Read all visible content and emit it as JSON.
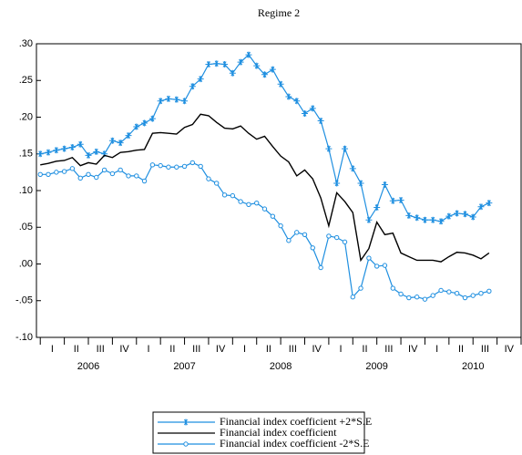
{
  "chart_data": {
    "type": "line",
    "title": "Regime 2",
    "x": [
      2006,
      2006.083,
      2006.167,
      2006.25,
      2006.333,
      2006.417,
      2006.5,
      2006.583,
      2006.667,
      2006.75,
      2006.833,
      2006.917,
      2007,
      2007.083,
      2007.167,
      2007.25,
      2007.333,
      2007.417,
      2007.5,
      2007.583,
      2007.667,
      2007.75,
      2007.833,
      2007.917,
      2008,
      2008.083,
      2008.167,
      2008.25,
      2008.333,
      2008.417,
      2008.5,
      2008.583,
      2008.667,
      2008.75,
      2008.833,
      2008.917,
      2009,
      2009.083,
      2009.167,
      2009.25,
      2009.333,
      2009.417,
      2009.5,
      2009.583,
      2009.667,
      2009.75,
      2009.833,
      2009.917,
      2010,
      2010.083,
      2010.167,
      2010.25,
      2010.333,
      2010.417,
      2010.5,
      2010.583,
      2010.667
    ],
    "series": [
      {
        "name": "Financial index coefficient +2*S.E",
        "color": "#1f8fe0",
        "marker": "star",
        "values": [
          0.15,
          0.152,
          0.155,
          0.157,
          0.159,
          0.163,
          0.148,
          0.153,
          0.15,
          0.168,
          0.165,
          0.175,
          0.187,
          0.192,
          0.198,
          0.222,
          0.225,
          0.224,
          0.222,
          0.242,
          0.252,
          0.272,
          0.273,
          0.272,
          0.26,
          0.275,
          0.285,
          0.27,
          0.258,
          0.265,
          0.245,
          0.228,
          0.222,
          0.205,
          0.212,
          0.195,
          0.157,
          0.11,
          0.157,
          0.13,
          0.11,
          0.06,
          0.077,
          0.108,
          0.086,
          0.087,
          0.066,
          0.063,
          0.06,
          0.06,
          0.058,
          0.065,
          0.069,
          0.068,
          0.064,
          0.078,
          0.083
        ]
      },
      {
        "name": "Financial index  coefficient",
        "color": "#000000",
        "marker": "none",
        "values": [
          0.135,
          0.137,
          0.14,
          0.141,
          0.145,
          0.134,
          0.138,
          0.136,
          0.148,
          0.145,
          0.152,
          0.153,
          0.155,
          0.156,
          0.178,
          0.179,
          0.178,
          0.177,
          0.186,
          0.19,
          0.204,
          0.202,
          0.193,
          0.185,
          0.184,
          0.188,
          0.178,
          0.17,
          0.174,
          0.16,
          0.147,
          0.139,
          0.12,
          0.128,
          0.116,
          0.09,
          0.052,
          0.097,
          0.085,
          0.07,
          0.005,
          0.021,
          0.057,
          0.04,
          0.042,
          0.015,
          0.01,
          0.005,
          0.005,
          0.005,
          0.003,
          0.01,
          0.016,
          0.015,
          0.012,
          0.007,
          0.015
        ]
      },
      {
        "name": "Financial index coefficient -2*S.E",
        "color": "#1f8fe0",
        "marker": "circle",
        "values": [
          0.122,
          0.122,
          0.125,
          0.126,
          0.13,
          0.117,
          0.122,
          0.118,
          0.128,
          0.123,
          0.128,
          0.12,
          0.12,
          0.113,
          0.135,
          0.134,
          0.132,
          0.132,
          0.133,
          0.138,
          0.133,
          0.116,
          0.11,
          0.094,
          0.093,
          0.085,
          0.081,
          0.083,
          0.075,
          0.065,
          0.052,
          0.032,
          0.043,
          0.04,
          0.022,
          -0.005,
          0.038,
          0.036,
          0.03,
          -0.045,
          -0.033,
          0.008,
          -0.003,
          -0.002,
          -0.033,
          -0.041,
          -0.046,
          -0.045,
          -0.048,
          -0.043,
          -0.036,
          -0.038,
          -0.04,
          -0.046,
          -0.043,
          -0.04,
          -0.037
        ]
      }
    ],
    "ylim": [
      -0.1,
      0.3
    ],
    "yticks": [
      {
        "value": -0.1,
        "label": "-.10"
      },
      {
        "value": -0.05,
        "label": "-.05"
      },
      {
        "value": 0,
        "label": ".00"
      },
      {
        "value": 0.05,
        "label": ".05"
      },
      {
        "value": 0.1,
        "label": ".10"
      },
      {
        "value": 0.15,
        "label": ".15"
      },
      {
        "value": 0.2,
        "label": ".20"
      },
      {
        "value": 0.25,
        "label": ".25"
      },
      {
        "value": 0.3,
        "label": ".30"
      }
    ],
    "xlim": [
      2005.96,
      2011.0
    ],
    "xtick_marks": [
      2006,
      2006.25,
      2006.5,
      2006.75,
      2007,
      2007.25,
      2007.5,
      2007.75,
      2008,
      2008.25,
      2008.5,
      2008.75,
      2009,
      2009.25,
      2009.5,
      2009.75,
      2010,
      2010.25,
      2010.5,
      2010.75,
      2011
    ],
    "xticks": [
      {
        "value": 2006.125,
        "label": "I"
      },
      {
        "value": 2006.375,
        "label": "II"
      },
      {
        "value": 2006.625,
        "label": "III"
      },
      {
        "value": 2006.875,
        "label": "IV"
      },
      {
        "value": 2007.125,
        "label": "I"
      },
      {
        "value": 2007.375,
        "label": "II"
      },
      {
        "value": 2007.625,
        "label": "III"
      },
      {
        "value": 2007.875,
        "label": "IV"
      },
      {
        "value": 2008.125,
        "label": "I"
      },
      {
        "value": 2008.375,
        "label": "II"
      },
      {
        "value": 2008.625,
        "label": "III"
      },
      {
        "value": 2008.875,
        "label": "IV"
      },
      {
        "value": 2009.125,
        "label": "I"
      },
      {
        "value": 2009.375,
        "label": "II"
      },
      {
        "value": 2009.625,
        "label": "III"
      },
      {
        "value": 2009.875,
        "label": "IV"
      },
      {
        "value": 2010.125,
        "label": "I"
      },
      {
        "value": 2010.375,
        "label": "II"
      },
      {
        "value": 2010.625,
        "label": "III"
      },
      {
        "value": 2010.875,
        "label": "IV"
      }
    ],
    "year_labels": [
      {
        "value": 2006.5,
        "label": "2006"
      },
      {
        "value": 2007.5,
        "label": "2007"
      },
      {
        "value": 2008.5,
        "label": "2008"
      },
      {
        "value": 2009.5,
        "label": "2009"
      },
      {
        "value": 2010.5,
        "label": "2010"
      }
    ],
    "grid": false
  }
}
